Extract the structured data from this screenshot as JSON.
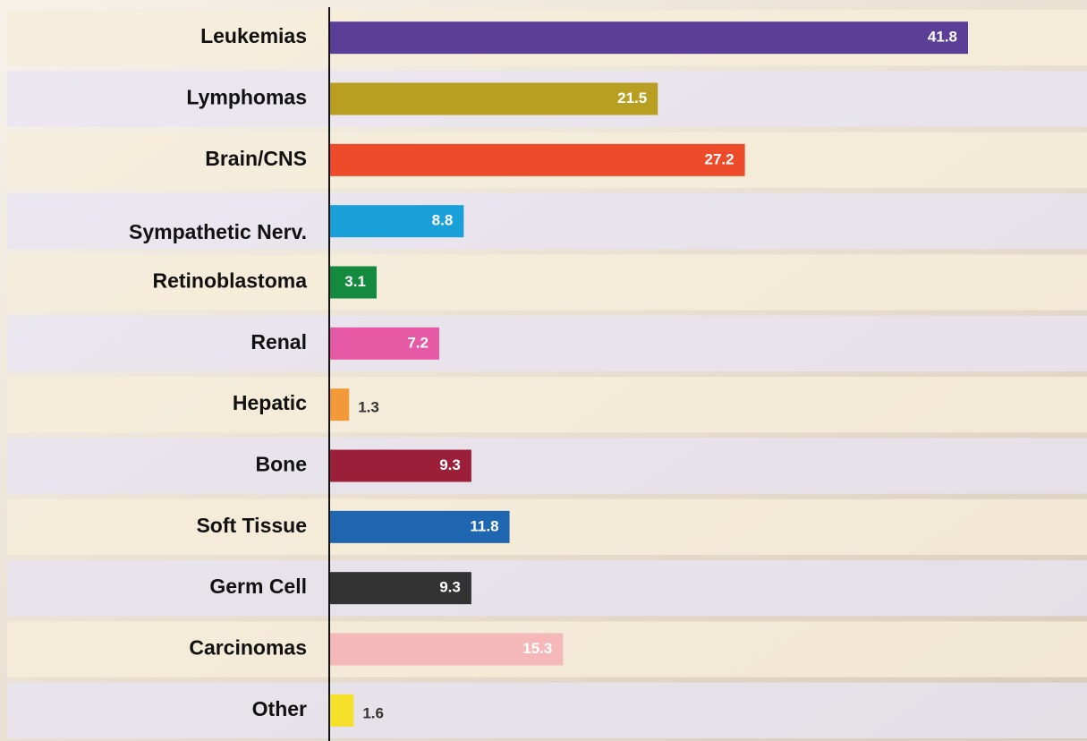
{
  "chart_data": {
    "type": "bar",
    "orientation": "horizontal",
    "categories": [
      "Leukemias",
      "Lymphomas",
      "Brain/CNS",
      "Sympathetic Nerv.",
      "Retinoblastoma",
      "Renal",
      "Hepatic",
      "Bone",
      "Soft Tissue",
      "Germ Cell",
      "Carcinomas",
      "Other"
    ],
    "values": [
      41.8,
      21.5,
      27.2,
      8.8,
      3.1,
      7.2,
      1.3,
      9.3,
      11.8,
      9.3,
      15.3,
      1.6
    ],
    "colors": [
      "#5b3e98",
      "#b89f22",
      "#ee4b2b",
      "#1aa0d8",
      "#138a3e",
      "#e65aa5",
      "#f29a3a",
      "#9c1f3a",
      "#1f66b0",
      "#333333",
      "#f5b8b8",
      "#f5e02a"
    ]
  }
}
